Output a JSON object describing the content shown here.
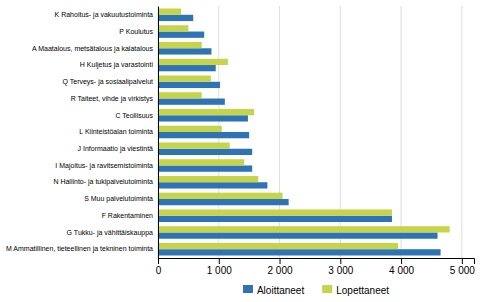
{
  "chart_data": {
    "type": "bar",
    "orientation": "horizontal",
    "categories": [
      "K Rahoitus- ja vakuutustoiminta",
      "P Koulutus",
      "A Maatalous, metsätalous ja kalatalous",
      "H Kuljetus ja varastointi",
      "Q Terveys- ja sosiaalipalvelut",
      "R Taiteet, vihde ja virkistys",
      "C Teollisuus",
      "L Kiinteistöalan toiminta",
      "J Informaatio ja viestintä",
      "I Majoitus- ja ravitsemistoiminta",
      "N Hallinto- ja tukipalvelutoiminta",
      "S Muu palvelutoiminta",
      "F Rakentaminen",
      "G Tukku- ja vähittäiskauppa",
      "M Ammatillinen, tieteellinen ja tekninen toiminta"
    ],
    "series": [
      {
        "name": "Aloittaneet",
        "color": "#2E74B5",
        "values": [
          580,
          760,
          880,
          950,
          1020,
          1100,
          1480,
          1500,
          1550,
          1550,
          1800,
          2150,
          3850,
          4600,
          4650
        ]
      },
      {
        "name": "Lopettaneet",
        "color": "#C5D44B",
        "values": [
          380,
          500,
          720,
          1150,
          870,
          720,
          1580,
          1050,
          1180,
          1420,
          1650,
          2050,
          3850,
          4800,
          3950
        ]
      }
    ],
    "xlim": [
      0,
      5200
    ],
    "xticks": [
      0,
      {
        "value": 1000,
        "label": "1 000"
      },
      {
        "value": 2000,
        "label": "2 000"
      },
      {
        "value": 3000,
        "label": "3 000"
      },
      {
        "value": 4000,
        "label": "4 000"
      },
      {
        "value": 5000,
        "label": "5 000"
      }
    ],
    "grid": true,
    "legend": "bottom"
  }
}
